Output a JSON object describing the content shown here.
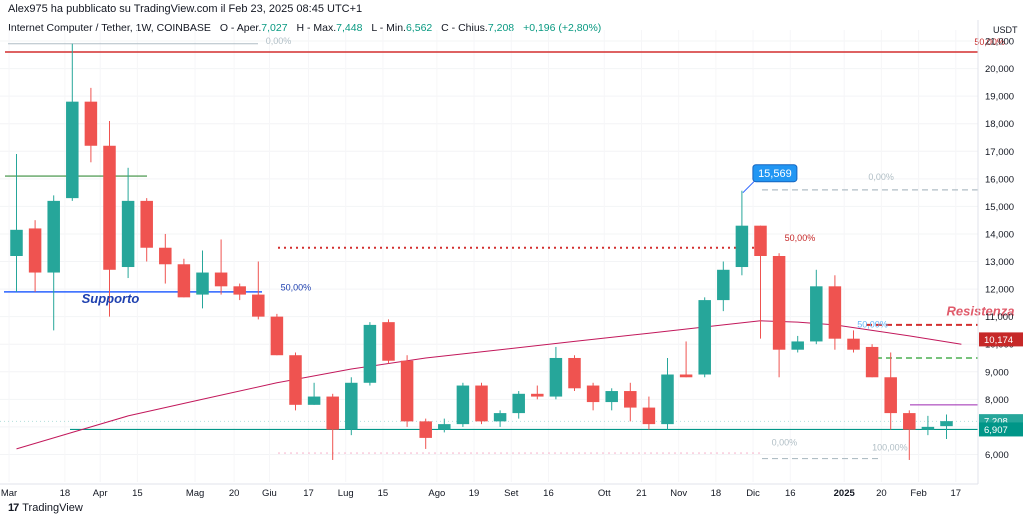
{
  "header": {
    "published": "Alex975 ha pubblicato su TradingView.com il Feb 23, 2025 08:45 UTC+1"
  },
  "legend": {
    "symbol": "Internet Computer / Tether, 1W, COINBASE",
    "o_label": "O - Aper.",
    "o_value": "7,027",
    "h_label": "H - Max.",
    "h_value": "7,448",
    "l_label": "L - Min.",
    "l_value": "6,562",
    "c_label": "C - Chius.",
    "c_value": "7,208",
    "change": "+0,196 (+2,80%)"
  },
  "footer": {
    "logo_glyph": "17",
    "brand": "TradingView"
  },
  "colors": {
    "up": "#26a69a",
    "down": "#ef5350",
    "ma": "#c2185b",
    "support": "#2962ff",
    "resistance": "#d32f2f",
    "teal_line": "#009688",
    "green_line": "#388e3c",
    "dashed_green": "#4caf50",
    "purple": "#9c27b0"
  },
  "chart_data": {
    "type": "candlestick",
    "timeframe": "1W",
    "currency": "USDT",
    "ylim": [
      5000,
      21400
    ],
    "y_ticks": [
      6000,
      7000,
      8000,
      9000,
      10000,
      11000,
      12000,
      13000,
      14000,
      15000,
      16000,
      17000,
      18000,
      19000,
      20000,
      21000
    ],
    "y_tick_labels": [
      "6,000",
      "7,000",
      "8,000",
      "9,000",
      "10,000",
      "11,000",
      "12,000",
      "13,000",
      "14,000",
      "15,000",
      "16,000",
      "17,000",
      "18,000",
      "19,000",
      "20,000",
      "21,000"
    ],
    "x_labels": [
      {
        "label": "Mar",
        "i": -0.4
      },
      {
        "label": "18",
        "i": 2.6
      },
      {
        "label": "Apr",
        "i": 4.5
      },
      {
        "label": "15",
        "i": 6.5
      },
      {
        "label": "Mag",
        "i": 9.6
      },
      {
        "label": "20",
        "i": 11.7
      },
      {
        "label": "Giu",
        "i": 13.6
      },
      {
        "label": "17",
        "i": 15.7
      },
      {
        "label": "Lug",
        "i": 17.7
      },
      {
        "label": "15",
        "i": 19.7
      },
      {
        "label": "Ago",
        "i": 22.6
      },
      {
        "label": "19",
        "i": 24.6
      },
      {
        "label": "Set",
        "i": 26.6
      },
      {
        "label": "16",
        "i": 28.6
      },
      {
        "label": "Ott",
        "i": 31.6
      },
      {
        "label": "21",
        "i": 33.6
      },
      {
        "label": "Nov",
        "i": 35.6
      },
      {
        "label": "18",
        "i": 37.6
      },
      {
        "label": "Dic",
        "i": 39.6
      },
      {
        "label": "16",
        "i": 41.6
      },
      {
        "label": "2025",
        "i": 44.5,
        "bold": true
      },
      {
        "label": "20",
        "i": 46.5
      },
      {
        "label": "Feb",
        "i": 48.5
      },
      {
        "label": "17",
        "i": 50.5
      }
    ],
    "candles": [
      {
        "o": 13200,
        "h": 16900,
        "l": 11900,
        "c": 14150
      },
      {
        "o": 14200,
        "h": 14500,
        "l": 11900,
        "c": 12600
      },
      {
        "o": 12600,
        "h": 15400,
        "l": 10500,
        "c": 15200
      },
      {
        "o": 15300,
        "h": 20900,
        "l": 15200,
        "c": 18800
      },
      {
        "o": 18800,
        "h": 19300,
        "l": 16600,
        "c": 17200
      },
      {
        "o": 17200,
        "h": 18100,
        "l": 11000,
        "c": 12700
      },
      {
        "o": 12800,
        "h": 16400,
        "l": 12400,
        "c": 15200
      },
      {
        "o": 15200,
        "h": 15300,
        "l": 13000,
        "c": 13500
      },
      {
        "o": 13500,
        "h": 14000,
        "l": 12200,
        "c": 12900
      },
      {
        "o": 12900,
        "h": 13100,
        "l": 11700,
        "c": 11700
      },
      {
        "o": 11800,
        "h": 13400,
        "l": 11300,
        "c": 12600
      },
      {
        "o": 12600,
        "h": 13800,
        "l": 11800,
        "c": 12100
      },
      {
        "o": 12100,
        "h": 12200,
        "l": 11600,
        "c": 11800
      },
      {
        "o": 11800,
        "h": 13000,
        "l": 10900,
        "c": 11000
      },
      {
        "o": 11000,
        "h": 11100,
        "l": 9600,
        "c": 9600
      },
      {
        "o": 9600,
        "h": 9700,
        "l": 7600,
        "c": 7800
      },
      {
        "o": 7800,
        "h": 8600,
        "l": 7800,
        "c": 8100
      },
      {
        "o": 8100,
        "h": 8200,
        "l": 5800,
        "c": 6900
      },
      {
        "o": 6900,
        "h": 8800,
        "l": 6700,
        "c": 8600
      },
      {
        "o": 8600,
        "h": 10800,
        "l": 8500,
        "c": 10700
      },
      {
        "o": 10800,
        "h": 10900,
        "l": 9300,
        "c": 9400
      },
      {
        "o": 9400,
        "h": 9600,
        "l": 7000,
        "c": 7200
      },
      {
        "o": 7200,
        "h": 7300,
        "l": 6200,
        "c": 6600
      },
      {
        "o": 6900,
        "h": 7300,
        "l": 6800,
        "c": 7100
      },
      {
        "o": 7100,
        "h": 8600,
        "l": 7000,
        "c": 8500
      },
      {
        "o": 8500,
        "h": 8600,
        "l": 7100,
        "c": 7200
      },
      {
        "o": 7200,
        "h": 7600,
        "l": 7000,
        "c": 7500
      },
      {
        "o": 7500,
        "h": 8300,
        "l": 7300,
        "c": 8200
      },
      {
        "o": 8200,
        "h": 8500,
        "l": 8000,
        "c": 8100
      },
      {
        "o": 8100,
        "h": 9900,
        "l": 8000,
        "c": 9500
      },
      {
        "o": 9500,
        "h": 9600,
        "l": 8300,
        "c": 8400
      },
      {
        "o": 8500,
        "h": 8600,
        "l": 7600,
        "c": 7900
      },
      {
        "o": 7900,
        "h": 8400,
        "l": 7600,
        "c": 8300
      },
      {
        "o": 8300,
        "h": 8600,
        "l": 7200,
        "c": 7700
      },
      {
        "o": 7700,
        "h": 8100,
        "l": 6900,
        "c": 7100
      },
      {
        "o": 7100,
        "h": 9500,
        "l": 6900,
        "c": 8900
      },
      {
        "o": 8900,
        "h": 10100,
        "l": 8800,
        "c": 8800
      },
      {
        "o": 8900,
        "h": 11700,
        "l": 8800,
        "c": 11600
      },
      {
        "o": 11600,
        "h": 13000,
        "l": 11200,
        "c": 12700
      },
      {
        "o": 12800,
        "h": 15569,
        "l": 12500,
        "c": 14300
      },
      {
        "o": 14300,
        "h": 14300,
        "l": 10200,
        "c": 13200
      },
      {
        "o": 13200,
        "h": 13300,
        "l": 8800,
        "c": 9800
      },
      {
        "o": 9800,
        "h": 10300,
        "l": 9700,
        "c": 10100
      },
      {
        "o": 10100,
        "h": 12700,
        "l": 10000,
        "c": 12100
      },
      {
        "o": 12100,
        "h": 12500,
        "l": 9800,
        "c": 10200
      },
      {
        "o": 10200,
        "h": 10500,
        "l": 9700,
        "c": 9800
      },
      {
        "o": 9900,
        "h": 10000,
        "l": 8800,
        "c": 8800
      },
      {
        "o": 8800,
        "h": 9700,
        "l": 6900,
        "c": 7500
      },
      {
        "o": 7500,
        "h": 7600,
        "l": 5800,
        "c": 6900
      },
      {
        "o": 6900,
        "h": 7400,
        "l": 6700,
        "c": 7000
      },
      {
        "o": 7027,
        "h": 7448,
        "l": 6562,
        "c": 7208
      }
    ],
    "moving_average": [
      [
        0,
        6200
      ],
      [
        3,
        6800
      ],
      [
        6,
        7400
      ],
      [
        10,
        8000
      ],
      [
        14,
        8600
      ],
      [
        18,
        9100
      ],
      [
        22,
        9500
      ],
      [
        26,
        9800
      ],
      [
        30,
        10100
      ],
      [
        34,
        10400
      ],
      [
        38,
        10700
      ],
      [
        40,
        10850
      ],
      [
        42,
        10800
      ],
      [
        44,
        10700
      ],
      [
        46,
        10500
      ],
      [
        48,
        10300
      ],
      [
        50.8,
        10000
      ]
    ],
    "price_labels": [
      {
        "value": 10174,
        "text": "10,174",
        "color": "#c62828"
      },
      {
        "value": 7208,
        "text": "7,208",
        "color": "#26a69a"
      },
      {
        "value": 6907,
        "text": "6,907",
        "color": "#009688"
      }
    ],
    "annotations": [
      {
        "text": "Supporto",
        "i": 3.5,
        "y": 11500,
        "color": "#1e40af",
        "style": "italic-bold",
        "size": 13
      },
      {
        "text": "Resistenza",
        "i": 50.0,
        "y": 11050,
        "color": "#e05a6a",
        "style": "italic-bold",
        "size": 13
      },
      {
        "text": "50,00%",
        "i": 51.5,
        "y": 20850,
        "color": "#c62828",
        "size": 9
      },
      {
        "text": "0,00%",
        "i": 13.4,
        "y": 20900,
        "color": "#b0bec5",
        "size": 9
      },
      {
        "text": "50,00%",
        "i": 14.2,
        "y": 11950,
        "color": "#1e40af",
        "size": 9
      },
      {
        "text": "50,00%",
        "i": 41.3,
        "y": 13750,
        "color": "#c62828",
        "size": 9
      },
      {
        "text": "0,00%",
        "i": 45.8,
        "y": 15950,
        "color": "#b0bec5",
        "size": 9
      },
      {
        "text": "50,00%",
        "i": 45.2,
        "y": 10600,
        "color": "#64b5f6",
        "size": 9
      },
      {
        "text": "0,00%",
        "i": 40.6,
        "y": 6330,
        "color": "#b0bec5",
        "size": 9
      },
      {
        "text": "100,00%",
        "i": 46.0,
        "y": 6150,
        "color": "#b0bec5",
        "size": 9
      }
    ],
    "callout": {
      "text": "15,569",
      "value": 15569,
      "i": 39
    }
  }
}
